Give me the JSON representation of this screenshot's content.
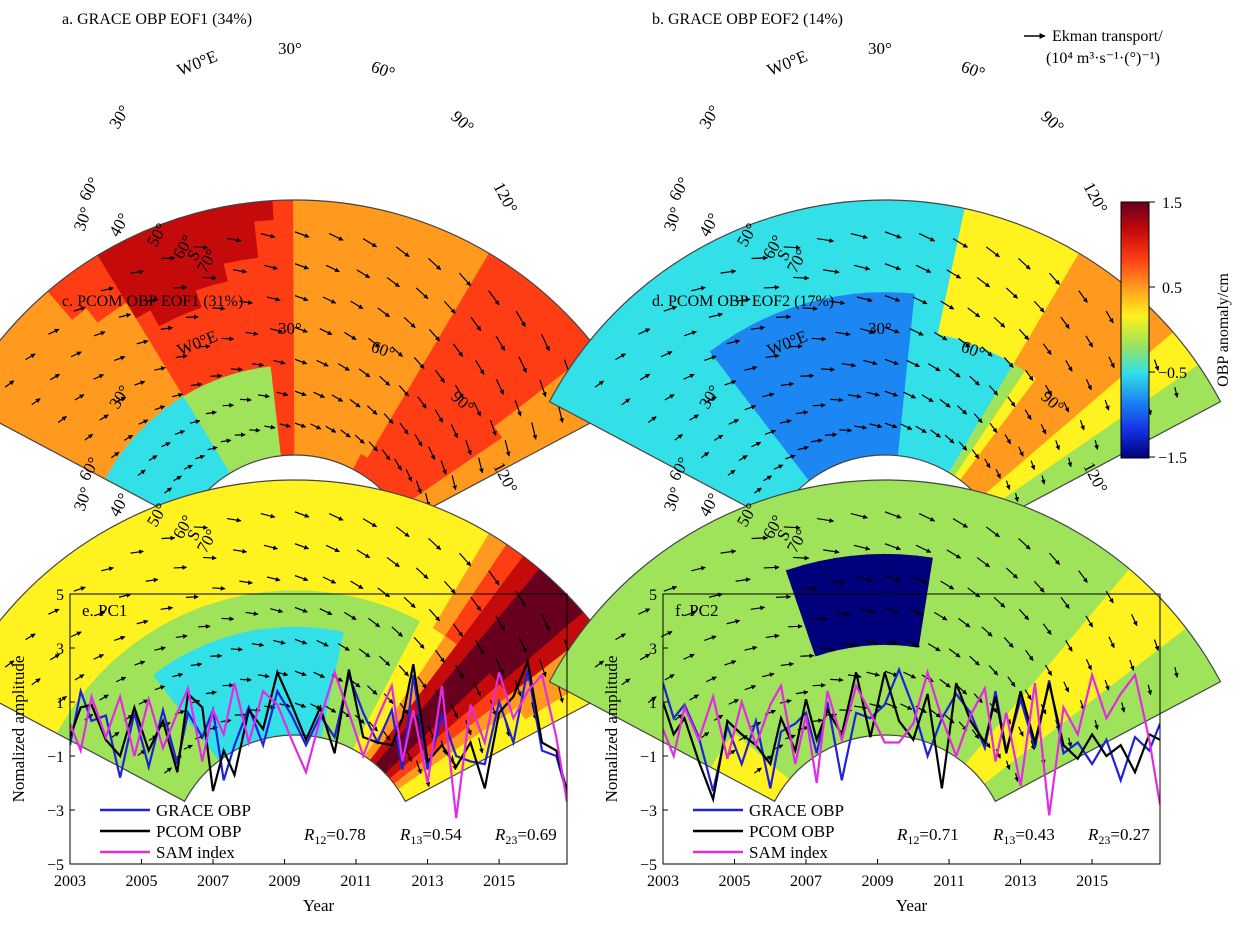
{
  "figure": {
    "map_panels": [
      {
        "title": "a. GRACE OBP EOF1 (34%)",
        "pattern": "eof1_grace"
      },
      {
        "title": "b. GRACE OBP EOF2 (14%)",
        "pattern": "eof2_grace"
      },
      {
        "title": "c. PCOM OBP EOF1 (31%)",
        "pattern": "eof1_pcom"
      },
      {
        "title": "d. PCOM OBP EOF2 (17%)",
        "pattern": "eof2_pcom"
      }
    ],
    "map_labels": {
      "lon": [
        "W0°E",
        "30°",
        "60°",
        "90°",
        "120°"
      ],
      "lat": [
        "30°",
        "60°",
        "40°",
        "50°",
        "60°",
        "S",
        "70°"
      ],
      "lon_left": "30°"
    },
    "vector_legend": {
      "line1": "Ekman transport/",
      "line2": "(10⁴ m³·s⁻¹·(°)⁻¹)"
    },
    "colorbar": {
      "label": "OBP anomaly/cm",
      "ticks": [
        "1.5",
        "0.5",
        "−0.5",
        "−1.5"
      ],
      "colors": [
        "#67001f",
        "#c40a0a",
        "#ff3d14",
        "#ff9a1e",
        "#fff21e",
        "#9fe35a",
        "#33e0e8",
        "#1c86f2",
        "#1432e6",
        "#00007a"
      ]
    }
  },
  "chart_data": [
    {
      "type": "line",
      "title": "e. PC1",
      "xlabel": "Year",
      "ylabel": "Nomalized amplitude",
      "xlim": [
        2003,
        2016.9
      ],
      "ylim": [
        -5,
        5
      ],
      "xticks": [
        "2003",
        "2005",
        "2007",
        "2009",
        "2011",
        "2013",
        "2015"
      ],
      "yticks": [
        "5",
        "3",
        "1",
        "−1",
        "−3",
        "−5"
      ],
      "legend": [
        "GRACE OBP",
        "PCOM OBP",
        "SAM index"
      ],
      "correlations": {
        "r12": "0.78",
        "r13": "0.54",
        "r23": "0.69"
      },
      "series": [
        {
          "name": "GRACE OBP",
          "color": "#1f22d8",
          "x": [
            2003,
            2003.3,
            2003.6,
            2004,
            2004.4,
            2004.8,
            2005.2,
            2005.6,
            2006,
            2006.3,
            2006.7,
            2007,
            2007.3,
            2007.6,
            2008,
            2008.4,
            2008.8,
            2009.2,
            2009.6,
            2010,
            2010.4,
            2010.8,
            2011.2,
            2011.6,
            2012,
            2012.3,
            2012.6,
            2013,
            2013.4,
            2013.8,
            2014.2,
            2014.6,
            2015,
            2015.4,
            2015.8,
            2016.2,
            2016.6,
            2016.9
          ],
          "y": [
            -0.6,
            1.4,
            0.3,
            0.5,
            -1.8,
            0.6,
            -1.4,
            0.7,
            -1.3,
            0.6,
            -0.3,
            0.7,
            -1.9,
            -0.6,
            0.8,
            -0.6,
            1.4,
            0.5,
            -0.6,
            0.5,
            -0.3,
            2.0,
            0.6,
            -0.5,
            0.7,
            -1.5,
            2.0,
            -1.5,
            0.5,
            -1.0,
            -1.2,
            -1.3,
            1.0,
            -0.5,
            2.2,
            -0.8,
            -1.0,
            -2.4
          ]
        },
        {
          "name": "PCOM OBP",
          "color": "#000000",
          "x": [
            2003,
            2003.3,
            2003.6,
            2004,
            2004.4,
            2004.8,
            2005.2,
            2005.6,
            2006,
            2006.3,
            2006.7,
            2007,
            2007.3,
            2007.6,
            2008,
            2008.4,
            2008.8,
            2009.2,
            2009.6,
            2010,
            2010.4,
            2010.8,
            2011.2,
            2011.6,
            2012,
            2012.3,
            2012.6,
            2013,
            2013.4,
            2013.8,
            2014.2,
            2014.6,
            2015,
            2015.4,
            2015.8,
            2016.2,
            2016.6,
            2016.9
          ],
          "y": [
            -0.3,
            0.8,
            0.9,
            -0.4,
            -1.0,
            0.8,
            -0.8,
            0.3,
            -1.6,
            1.3,
            0.8,
            -2.3,
            -0.8,
            -1.7,
            0.7,
            0.0,
            2.1,
            0.9,
            -0.4,
            0.8,
            -0.9,
            2.2,
            -0.3,
            -0.5,
            -0.6,
            0.4,
            2.4,
            -1.2,
            -0.6,
            -1.4,
            -0.5,
            -2.2,
            0.6,
            1.2,
            2.5,
            -0.5,
            -0.8,
            -2.3
          ]
        },
        {
          "name": "SAM index",
          "color": "#e42be4",
          "x": [
            2003,
            2003.3,
            2003.6,
            2004,
            2004.4,
            2004.8,
            2005.2,
            2005.6,
            2006,
            2006.3,
            2006.7,
            2007,
            2007.3,
            2007.6,
            2008,
            2008.4,
            2008.8,
            2009.2,
            2009.6,
            2010,
            2010.4,
            2010.8,
            2011.2,
            2011.6,
            2012,
            2012.3,
            2012.6,
            2013,
            2013.4,
            2013.8,
            2014.2,
            2014.6,
            2015,
            2015.4,
            2015.8,
            2016.2,
            2016.6,
            2016.9
          ],
          "y": [
            0.2,
            -0.8,
            1.2,
            -0.3,
            1.2,
            -1.0,
            1.1,
            -0.7,
            0.6,
            1.5,
            -1.2,
            0.7,
            -0.2,
            1.7,
            -0.5,
            1.4,
            0.9,
            -0.4,
            -1.6,
            0.4,
            2.1,
            0.6,
            -1.0,
            0.4,
            1.6,
            -1.2,
            0.7,
            -2.0,
            1.6,
            -3.3,
            0.9,
            -0.5,
            2.1,
            0.4,
            1.4,
            2.0,
            -0.3,
            -2.7
          ]
        }
      ]
    },
    {
      "type": "line",
      "title": "f. PC2",
      "xlabel": "Year",
      "ylabel": "Nomalized amplitude",
      "xlim": [
        2003,
        2016.9
      ],
      "ylim": [
        -5,
        5
      ],
      "xticks": [
        "2003",
        "2005",
        "2007",
        "2009",
        "2011",
        "2013",
        "2015"
      ],
      "yticks": [
        "5",
        "3",
        "1",
        "−1",
        "−3",
        "−5"
      ],
      "legend": [
        "GRACE OBP",
        "PCOM OBP",
        "SAM index"
      ],
      "correlations": {
        "r12": "0.71",
        "r13": "0.43",
        "r23": "0.27"
      },
      "series": [
        {
          "name": "GRACE OBP",
          "color": "#1f22d8",
          "x": [
            2003,
            2003.3,
            2003.6,
            2004,
            2004.4,
            2004.8,
            2005.2,
            2005.6,
            2006,
            2006.3,
            2006.7,
            2007,
            2007.3,
            2007.6,
            2008,
            2008.4,
            2008.8,
            2009.2,
            2009.6,
            2010,
            2010.4,
            2010.8,
            2011.2,
            2011.6,
            2012,
            2012.3,
            2012.6,
            2013,
            2013.4,
            2013.8,
            2014.2,
            2014.6,
            2015,
            2015.4,
            2015.8,
            2016.2,
            2016.6,
            2016.9
          ],
          "y": [
            1.7,
            0.4,
            0.9,
            -0.3,
            -2.3,
            0.1,
            -1.3,
            0.3,
            -2.2,
            -0.1,
            0.2,
            0.6,
            -0.9,
            1.0,
            -1.9,
            0.6,
            0.4,
            0.9,
            2.2,
            0.8,
            -1.0,
            0.4,
            1.3,
            0.6,
            -0.7,
            1.4,
            -0.8,
            1.1,
            -0.7,
            1.8,
            -0.9,
            -0.5,
            -1.3,
            -0.4,
            -1.9,
            -0.3,
            -0.8,
            0.2
          ]
        },
        {
          "name": "PCOM OBP",
          "color": "#000000",
          "x": [
            2003,
            2003.3,
            2003.6,
            2004,
            2004.4,
            2004.8,
            2005.2,
            2005.6,
            2006,
            2006.3,
            2006.7,
            2007,
            2007.3,
            2007.6,
            2008,
            2008.4,
            2008.8,
            2009.2,
            2009.6,
            2010,
            2010.4,
            2010.8,
            2011.2,
            2011.6,
            2012,
            2012.3,
            2012.6,
            2013,
            2013.4,
            2013.8,
            2014.2,
            2014.6,
            2015,
            2015.4,
            2015.8,
            2016.2,
            2016.6,
            2016.9
          ],
          "y": [
            1.0,
            -0.2,
            0.4,
            -1.2,
            -2.6,
            0.3,
            -0.2,
            -0.6,
            -1.3,
            0.4,
            -0.8,
            1.1,
            -0.4,
            0.7,
            -0.2,
            2.1,
            -0.3,
            2.1,
            0.3,
            -0.4,
            1.3,
            -2.2,
            1.7,
            0.3,
            -0.5,
            1.2,
            -0.9,
            1.4,
            -0.5,
            1.7,
            -0.6,
            -1.1,
            -0.2,
            -1.0,
            -0.6,
            -1.6,
            -0.2,
            -0.4
          ]
        },
        {
          "name": "SAM index",
          "color": "#e42be4",
          "x": [
            2003,
            2003.3,
            2003.6,
            2004,
            2004.4,
            2004.8,
            2005.2,
            2005.6,
            2006,
            2006.3,
            2006.7,
            2007,
            2007.3,
            2007.6,
            2008,
            2008.4,
            2008.8,
            2009.2,
            2009.6,
            2010,
            2010.4,
            2010.8,
            2011.2,
            2011.6,
            2012,
            2012.3,
            2012.6,
            2013,
            2013.4,
            2013.8,
            2014.2,
            2014.6,
            2015,
            2015.4,
            2015.8,
            2016.2,
            2016.6,
            2016.9
          ],
          "y": [
            0.0,
            -1.0,
            0.8,
            -0.4,
            1.2,
            -1.1,
            1.0,
            -0.6,
            0.9,
            1.6,
            -1.3,
            0.5,
            -2.0,
            1.4,
            -0.4,
            1.6,
            0.6,
            -0.5,
            -0.5,
            0.2,
            2.1,
            0.4,
            -1.0,
            0.5,
            1.5,
            -1.2,
            0.6,
            -2.1,
            1.7,
            -3.2,
            0.8,
            -0.2,
            2.0,
            0.4,
            1.3,
            2.0,
            -0.4,
            -2.8
          ]
        }
      ]
    }
  ]
}
